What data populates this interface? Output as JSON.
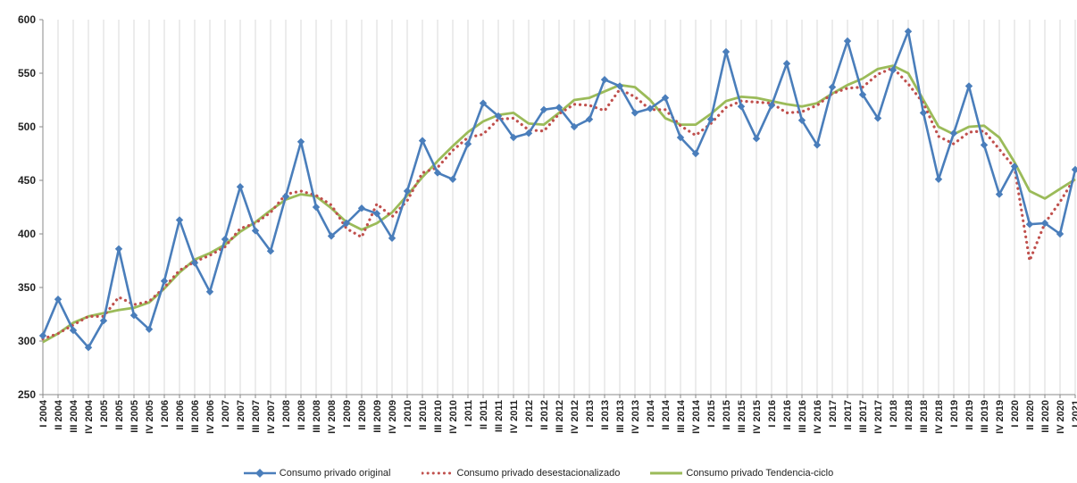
{
  "chart_data": {
    "type": "line",
    "title": "",
    "xlabel": "",
    "ylabel": "",
    "ylim": [
      250,
      600
    ],
    "yticks": [
      250,
      300,
      350,
      400,
      450,
      500,
      550,
      600
    ],
    "grid": "vertical",
    "legend_position": "bottom",
    "categories": [
      "I 2004",
      "II 2004",
      "III 2004",
      "IV 2004",
      "I 2005",
      "II 2005",
      "III 2005",
      "IV 2005",
      "I 2006",
      "II 2006",
      "III 2006",
      "IV 2006",
      "I 2007",
      "II 2007",
      "III 2007",
      "IV 2007",
      "I 2008",
      "II 2008",
      "III 2008",
      "IV 2008",
      "I 2009",
      "II 2009",
      "III 2009",
      "IV 2009",
      "I 2010",
      "II 2010",
      "III 2010",
      "IV 2010",
      "I 2011",
      "II 2011",
      "III 2011",
      "IV 2011",
      "I 2012",
      "II 2012",
      "III 2012",
      "IV 2012",
      "I 2013",
      "II 2013",
      "III 2013",
      "IV 2013",
      "I 2014",
      "II 2014",
      "III 2014",
      "IV 2014",
      "I 2015",
      "II 2015",
      "III 2015",
      "IV 2015",
      "I 2016",
      "II 2016",
      "III 2016",
      "IV 2016",
      "I 2017",
      "II 2017",
      "III 2017",
      "IV 2017",
      "I 2018",
      "II 2018",
      "III 2018",
      "IV 2018",
      "I 2019",
      "II 2019",
      "III 2019",
      "IV 2019",
      "I 2020",
      "II 2020",
      "III 2020",
      "IV 2020",
      "I 2021"
    ],
    "series": [
      {
        "name": "Consumo privado original",
        "color": "#4a7ebb",
        "style": "line-diamond",
        "values": [
          305,
          339,
          310,
          294,
          319,
          386,
          324,
          311,
          356,
          413,
          373,
          346,
          395,
          444,
          403,
          384,
          435,
          486,
          425,
          398,
          410,
          424,
          419,
          396,
          440,
          487,
          457,
          451,
          484,
          522,
          510,
          490,
          494,
          516,
          518,
          500,
          507,
          544,
          538,
          513,
          517,
          527,
          490,
          475,
          507,
          570,
          519,
          489,
          520,
          559,
          506,
          483,
          537,
          580,
          530,
          508,
          553,
          589,
          513,
          451,
          494,
          538,
          483,
          437,
          463,
          409,
          410,
          400,
          460
        ]
      },
      {
        "name": "Consumo privado desestacionalizado",
        "color": "#c0504d",
        "style": "dotted",
        "values": [
          302,
          307,
          315,
          323,
          323,
          341,
          334,
          337,
          350,
          366,
          374,
          380,
          388,
          405,
          410,
          420,
          437,
          440,
          436,
          427,
          405,
          397,
          428,
          416,
          431,
          457,
          462,
          478,
          490,
          493,
          507,
          508,
          497,
          496,
          512,
          521,
          520,
          515,
          535,
          528,
          516,
          516,
          501,
          492,
          503,
          518,
          524,
          523,
          522,
          513,
          514,
          520,
          531,
          536,
          537,
          549,
          555,
          540,
          522,
          491,
          484,
          495,
          496,
          479,
          462,
          375,
          410,
          430,
          453
        ]
      },
      {
        "name": "Consumo privado Tendencia-ciclo",
        "color": "#9bbb59",
        "style": "solid",
        "values": [
          299,
          307,
          317,
          323,
          326,
          329,
          331,
          336,
          349,
          364,
          376,
          382,
          390,
          402,
          411,
          422,
          432,
          437,
          435,
          424,
          411,
          404,
          410,
          420,
          436,
          453,
          468,
          482,
          495,
          505,
          511,
          513,
          503,
          502,
          513,
          525,
          527,
          533,
          539,
          537,
          525,
          508,
          502,
          502,
          512,
          524,
          528,
          527,
          524,
          521,
          519,
          522,
          531,
          539,
          545,
          554,
          557,
          550,
          525,
          500,
          493,
          500,
          501,
          490,
          467,
          440,
          433,
          442,
          451
        ]
      }
    ]
  }
}
